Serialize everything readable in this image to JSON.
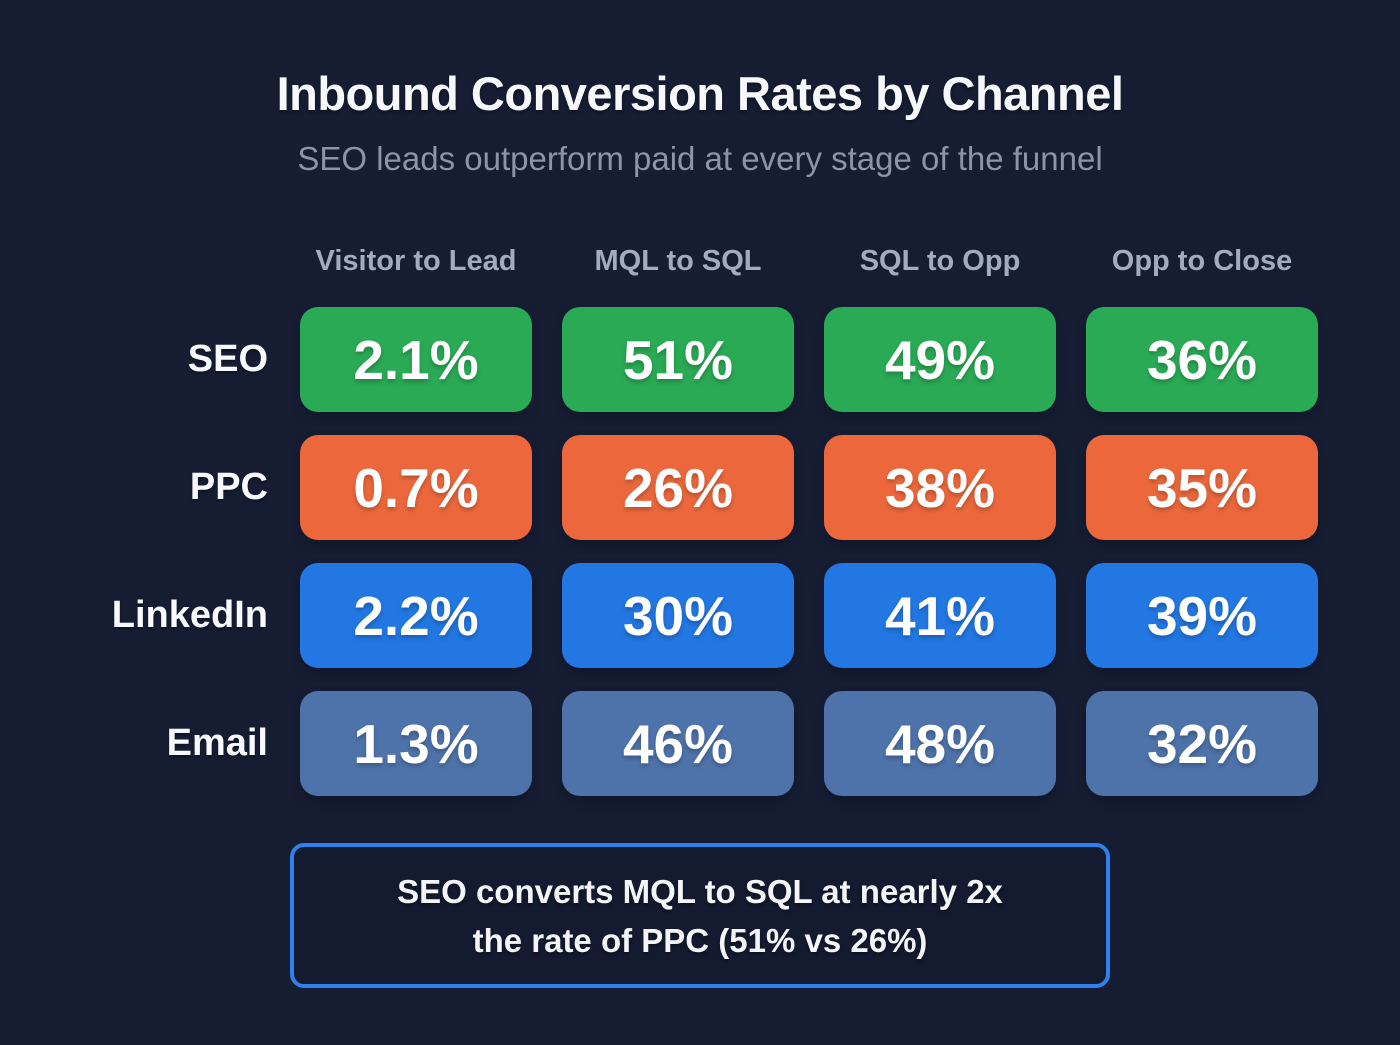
{
  "header": {
    "title": "Inbound Conversion Rates by Channel",
    "subtitle": "SEO leads outperform paid at every stage of the funnel"
  },
  "chart_data": {
    "type": "heatmap",
    "unit": "%",
    "columns": [
      "Visitor to Lead",
      "MQL to SQL",
      "SQL to Opp",
      "Opp to Close"
    ],
    "rows": [
      {
        "label": "SEO",
        "color": "#2aaa55",
        "display": [
          "2.1%",
          "51%",
          "49%",
          "36%"
        ],
        "values": [
          2.1,
          51,
          49,
          36
        ]
      },
      {
        "label": "PPC",
        "color": "#ec683c",
        "display": [
          "0.7%",
          "26%",
          "38%",
          "35%"
        ],
        "values": [
          0.7,
          26,
          38,
          35
        ]
      },
      {
        "label": "LinkedIn",
        "color": "#2277e3",
        "display": [
          "2.2%",
          "30%",
          "41%",
          "39%"
        ],
        "values": [
          2.2,
          30,
          41,
          39
        ]
      },
      {
        "label": "Email",
        "color": "#4e73aa",
        "display": [
          "1.3%",
          "46%",
          "48%",
          "32%"
        ],
        "values": [
          1.3,
          46,
          48,
          32
        ]
      }
    ],
    "callout": {
      "line1": "SEO converts MQL to SQL at nearly 2x",
      "line2": "the rate of PPC (51% vs 26%)"
    },
    "palette": {
      "background": "#161d33",
      "seo_green": "#2aaa55",
      "ppc_orange": "#ec683c",
      "linkedin_blue": "#2277e3",
      "email_slate": "#4e73aa",
      "callout_border": "#2e80ea",
      "heading_text": "#f6f8fb",
      "muted_text": "#8b94a9"
    }
  }
}
